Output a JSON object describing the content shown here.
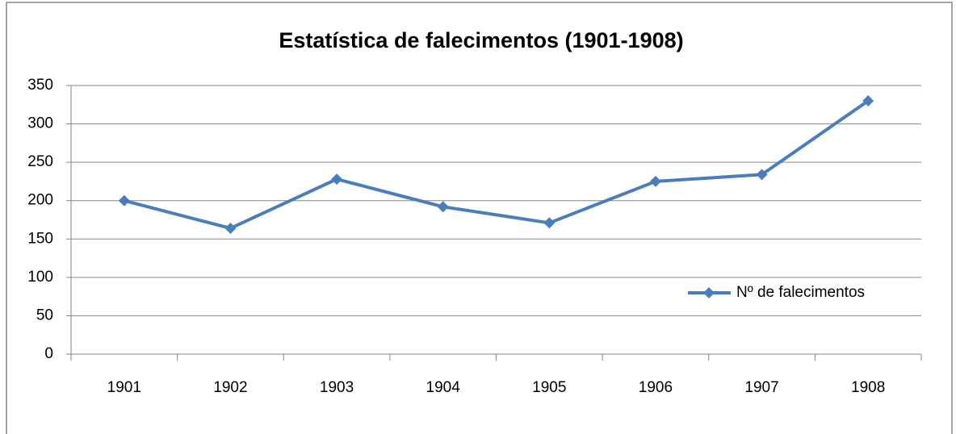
{
  "chart_data": {
    "type": "line",
    "title": "Estatística de falecimentos (1901-1908)",
    "categories": [
      "1901",
      "1902",
      "1903",
      "1904",
      "1905",
      "1906",
      "1907",
      "1908"
    ],
    "series": [
      {
        "name": "Nº de falecimentos",
        "color": "#4a7ebb",
        "values": [
          200,
          164,
          228,
          192,
          171,
          225,
          234,
          330
        ]
      }
    ],
    "ylim": [
      0,
      350
    ],
    "yticks": [
      0,
      50,
      100,
      150,
      200,
      250,
      300,
      350
    ],
    "grid": true,
    "legend": "right"
  }
}
